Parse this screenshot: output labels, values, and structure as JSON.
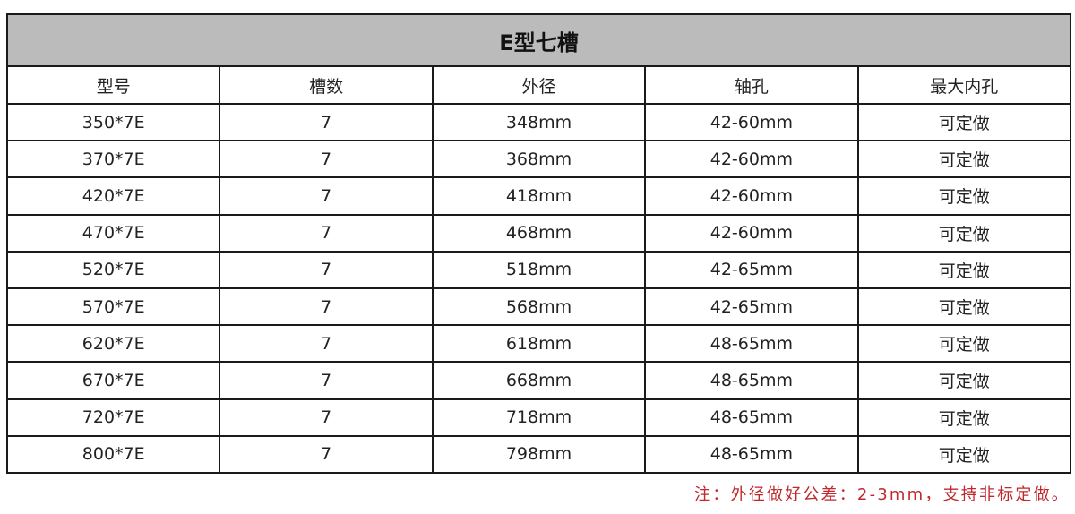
{
  "title": "E型七槽",
  "headers": [
    "型号",
    "槽数",
    "外径",
    "轴孔",
    "最大内孔"
  ],
  "rows": [
    [
      "350*7E",
      "7",
      "348mm",
      "42-60mm",
      "可定做"
    ],
    [
      "370*7E",
      "7",
      "368mm",
      "42-60mm",
      "可定做"
    ],
    [
      "420*7E",
      "7",
      "418mm",
      "42-60mm",
      "可定做"
    ],
    [
      "470*7E",
      "7",
      "468mm",
      "42-60mm",
      "可定做"
    ],
    [
      "520*7E",
      "7",
      "518mm",
      "42-65mm",
      "可定做"
    ],
    [
      "570*7E",
      "7",
      "568mm",
      "42-65mm",
      "可定做"
    ],
    [
      "620*7E",
      "7",
      "618mm",
      "48-65mm",
      "可定做"
    ],
    [
      "670*7E",
      "7",
      "668mm",
      "48-65mm",
      "可定做"
    ],
    [
      "720*7E",
      "7",
      "718mm",
      "48-65mm",
      "可定做"
    ],
    [
      "800*7E",
      "7",
      "798mm",
      "48-65mm",
      "可定做"
    ]
  ],
  "note": "注：外径做好公差：2-3mm，支持非标定做。",
  "colors": {
    "title_bg": "#bbbbbb",
    "note": "#c0282d",
    "border": "#1a1a1a"
  }
}
